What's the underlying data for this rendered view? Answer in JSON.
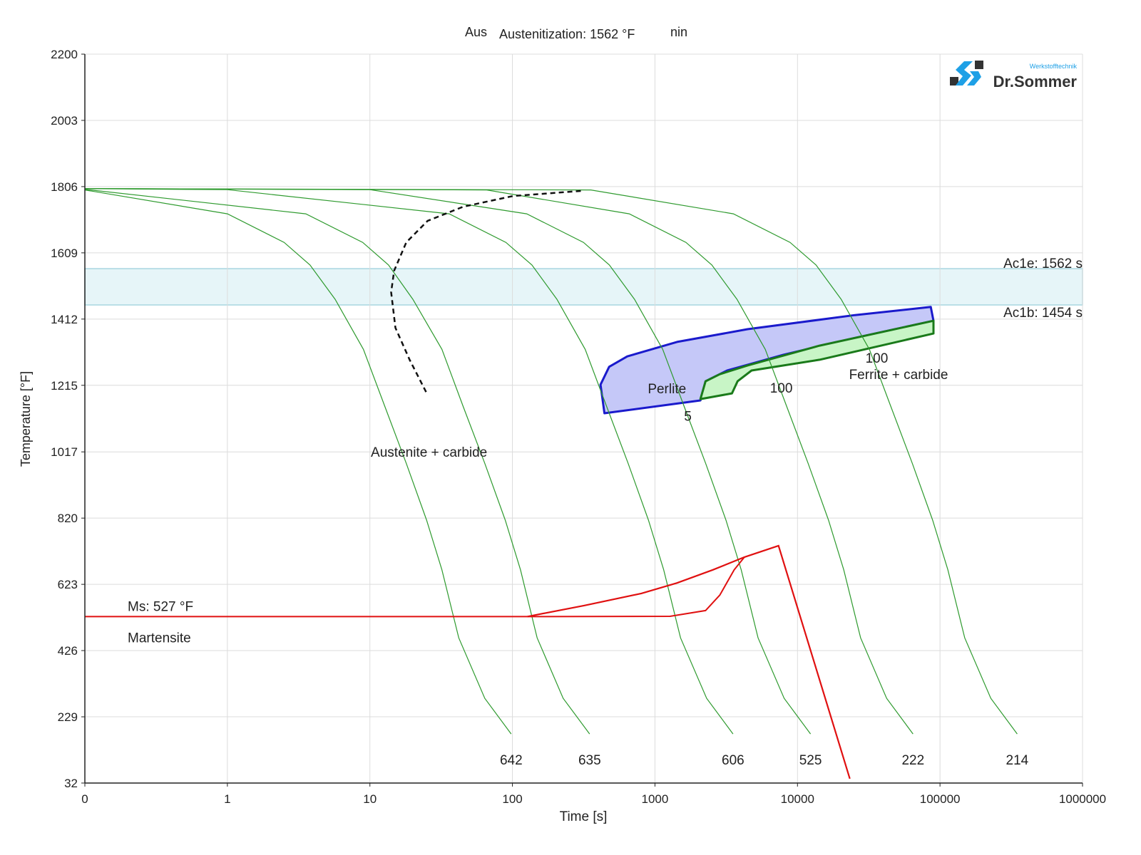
{
  "chart_data": {
    "type": "line",
    "title_fragments": [
      "Aus",
      "Austenitization: 1562 °F",
      "nin"
    ],
    "xlabel": "Time [s]",
    "ylabel": "Temperature [°F]",
    "x_scale": "log",
    "xlim": [
      0.1,
      1000000
    ],
    "ylim": [
      32,
      2200
    ],
    "x_ticks": [
      {
        "v": 0.1,
        "label": "0"
      },
      {
        "v": 1,
        "label": "1"
      },
      {
        "v": 10,
        "label": "10"
      },
      {
        "v": 100,
        "label": "100"
      },
      {
        "v": 1000,
        "label": "1000"
      },
      {
        "v": 10000,
        "label": "10000"
      },
      {
        "v": 100000,
        "label": "100000"
      },
      {
        "v": 1000000,
        "label": "1000000"
      }
    ],
    "y_ticks": [
      32,
      229,
      426,
      623,
      820,
      1017,
      1215,
      1412,
      1609,
      1806,
      2003,
      2200
    ],
    "grid": true,
    "logo": {
      "name": "Dr.Sommer",
      "tagline": "Werkstofftechnik"
    },
    "ac_band": {
      "upper": 1562,
      "lower": 1454,
      "upper_label": "Ac1e: 1562 s",
      "lower_label": "Ac1b: 1454 s",
      "color": "#e6f5f8"
    },
    "cooling_curves": [
      {
        "label": "642",
        "points": [
          [
            0.1,
            1796
          ],
          [
            1,
            1725
          ],
          [
            2.5,
            1640
          ],
          [
            3.8,
            1573
          ],
          [
            5.7,
            1471
          ],
          [
            9,
            1322
          ],
          [
            12.7,
            1153
          ],
          [
            18,
            983
          ],
          [
            25,
            814
          ],
          [
            32,
            666
          ],
          [
            42,
            464
          ],
          [
            64,
            284
          ],
          [
            98,
            178
          ]
        ]
      },
      {
        "label": "635",
        "points": [
          [
            0.1,
            1798
          ],
          [
            3.55,
            1725
          ],
          [
            8.9,
            1640
          ],
          [
            13.5,
            1573
          ],
          [
            20,
            1471
          ],
          [
            32,
            1322
          ],
          [
            45,
            1153
          ],
          [
            64,
            983
          ],
          [
            89,
            814
          ],
          [
            114,
            666
          ],
          [
            149,
            464
          ],
          [
            227,
            284
          ],
          [
            348,
            178
          ]
        ]
      },
      {
        "label": "606",
        "points": [
          [
            0.1,
            1800
          ],
          [
            1,
            1797
          ],
          [
            36,
            1725
          ],
          [
            90,
            1640
          ],
          [
            137,
            1573
          ],
          [
            205,
            1471
          ],
          [
            324,
            1322
          ],
          [
            457,
            1153
          ],
          [
            648,
            983
          ],
          [
            900,
            814
          ],
          [
            1152,
            666
          ],
          [
            1512,
            464
          ],
          [
            2304,
            284
          ],
          [
            3528,
            178
          ]
        ]
      },
      {
        "label": "525",
        "points": [
          [
            0.1,
            1800
          ],
          [
            10,
            1797
          ],
          [
            126,
            1725
          ],
          [
            315,
            1640
          ],
          [
            479,
            1573
          ],
          [
            718,
            1471
          ],
          [
            1134,
            1322
          ],
          [
            1600,
            1153
          ],
          [
            2268,
            983
          ],
          [
            3150,
            814
          ],
          [
            4032,
            666
          ],
          [
            5292,
            464
          ],
          [
            8064,
            284
          ],
          [
            12348,
            178
          ]
        ]
      },
      {
        "label": "222",
        "points": [
          [
            0.1,
            1800
          ],
          [
            66,
            1796
          ],
          [
            660,
            1725
          ],
          [
            1650,
            1640
          ],
          [
            2508,
            1573
          ],
          [
            3762,
            1471
          ],
          [
            5940,
            1322
          ],
          [
            8382,
            1153
          ],
          [
            11880,
            983
          ],
          [
            16500,
            814
          ],
          [
            21120,
            666
          ],
          [
            27720,
            464
          ],
          [
            42240,
            284
          ],
          [
            64680,
            178
          ]
        ]
      },
      {
        "label": "214",
        "points": [
          [
            0.1,
            1800
          ],
          [
            355,
            1796
          ],
          [
            3550,
            1725
          ],
          [
            8875,
            1640
          ],
          [
            13490,
            1573
          ],
          [
            20235,
            1471
          ],
          [
            31950,
            1322
          ],
          [
            45085,
            1153
          ],
          [
            63900,
            983
          ],
          [
            88750,
            814
          ],
          [
            113600,
            666
          ],
          [
            149100,
            464
          ],
          [
            227200,
            284
          ],
          [
            347900,
            178
          ]
        ]
      }
    ],
    "austenitization_curve": {
      "style": "dashed",
      "points": [
        [
          24.8,
          1195
        ],
        [
          19,
          1291
        ],
        [
          15.1,
          1386
        ],
        [
          14.1,
          1492
        ],
        [
          14.8,
          1556
        ],
        [
          18,
          1640
        ],
        [
          25.4,
          1704
        ],
        [
          45,
          1746
        ],
        [
          101,
          1778
        ],
        [
          302,
          1793
        ]
      ]
    },
    "martensite": {
      "ms_label": "Ms: 527 °F",
      "region_label": "Martensite",
      "ms_line": [
        [
          0.1,
          527
        ],
        [
          127,
          527
        ]
      ],
      "upper_curve": [
        [
          127,
          527
        ],
        [
          318,
          560
        ],
        [
          802,
          596
        ],
        [
          1429,
          627
        ],
        [
          2547,
          666
        ],
        [
          4246,
          704
        ],
        [
          7362,
          738
        ],
        [
          23300,
          45
        ]
      ],
      "lower_curve": [
        [
          127,
          527
        ],
        [
          1276,
          528
        ],
        [
          2264,
          545
        ],
        [
          2851,
          591
        ],
        [
          3597,
          666
        ],
        [
          4246,
          704
        ]
      ]
    },
    "regions": [
      {
        "name": "Perlite",
        "fill": "#c5c8f8",
        "stroke": "#1a1acc",
        "label_at": [
          890,
          1215
        ],
        "points": [
          [
            442,
            1132
          ],
          [
            415,
            1217
          ],
          [
            477,
            1270
          ],
          [
            639,
            1301
          ],
          [
            1429,
            1344
          ],
          [
            4467,
            1382
          ],
          [
            25350,
            1424
          ],
          [
            86100,
            1448
          ],
          [
            90000,
            1407
          ],
          [
            25350,
            1356
          ],
          [
            8000,
            1306
          ],
          [
            3210,
            1259
          ],
          [
            2264,
            1227
          ],
          [
            2085,
            1170
          ]
        ]
      },
      {
        "name": "Ferrite + carbide",
        "fill": "#c8f5c6",
        "stroke": "#1a7a1a",
        "label_at": [
          23000,
          1257
        ],
        "points": [
          [
            2085,
            1174
          ],
          [
            2264,
            1227
          ],
          [
            2851,
            1248
          ],
          [
            4467,
            1274
          ],
          [
            14300,
            1333
          ],
          [
            90000,
            1407
          ],
          [
            90000,
            1369
          ],
          [
            14300,
            1291
          ],
          [
            4760,
            1259
          ],
          [
            3800,
            1227
          ],
          [
            3470,
            1191
          ]
        ]
      }
    ],
    "annotations": [
      {
        "text": "Austenite + carbide",
        "at": [
          26,
          1017
        ]
      },
      {
        "text": "5",
        "at": [
          1700,
          1124
        ]
      },
      {
        "text": "100",
        "at": [
          7700,
          1208
        ]
      },
      {
        "text": "100",
        "at": [
          36000,
          1297
        ]
      }
    ]
  }
}
